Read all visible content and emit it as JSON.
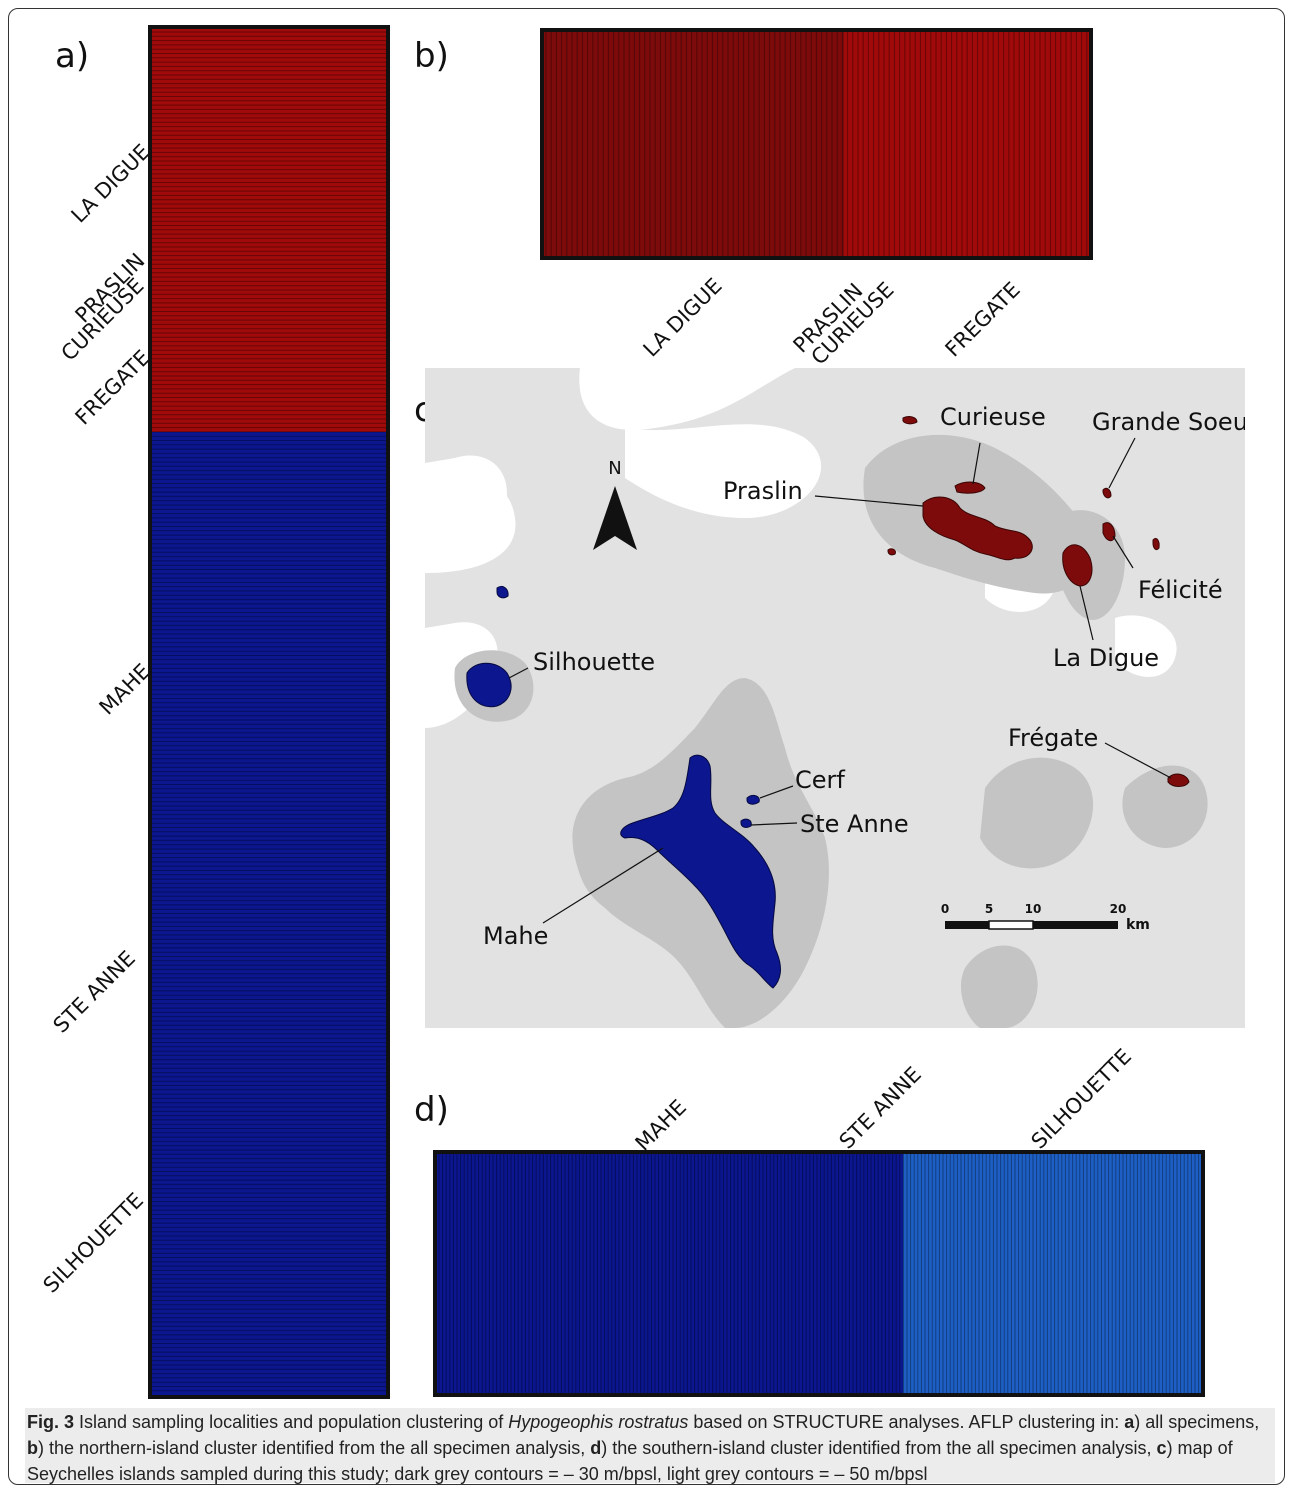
{
  "figure": {
    "panel_a_label": "a)",
    "panel_b_label": "b)",
    "panel_c_label": "c)",
    "panel_d_label": "d)",
    "colors": {
      "north_cluster": "#a00a0a",
      "north_cluster_alt": "#7e0b0b",
      "south_cluster": "#0b168f",
      "south_cluster_alt": "#1d5fc4",
      "land_dark_grey": "#c4c4c4",
      "land_light_grey": "#e2e2e2",
      "bar_border": "#111111"
    }
  },
  "panel_a": {
    "labels": [
      "LA DIGUE",
      "PRASLIN",
      "CURIEUSE",
      "FREGATE",
      "MAHE",
      "STE ANNE",
      "SILHOUETTE"
    ],
    "north_fraction": 0.295,
    "south_fraction": 0.705
  },
  "panel_b": {
    "labels": [
      "LA DIGUE",
      "PRASLIN",
      "CURIEUSE",
      "FREGATE"
    ]
  },
  "panel_d": {
    "labels": [
      "MAHE",
      "STE ANNE",
      "SILHOUETTE"
    ]
  },
  "map": {
    "north_arrow": "N",
    "islands": [
      {
        "name": "Curieuse"
      },
      {
        "name": "Grande Soeur"
      },
      {
        "name": "Praslin"
      },
      {
        "name": "Félicité"
      },
      {
        "name": "La Digue"
      },
      {
        "name": "Silhouette"
      },
      {
        "name": "Frégate"
      },
      {
        "name": "Cerf"
      },
      {
        "name": "Ste Anne"
      },
      {
        "name": "Mahe"
      }
    ],
    "scale": {
      "ticks": [
        "0",
        "5",
        "10",
        "20"
      ],
      "unit": "km"
    }
  },
  "caption": {
    "fig": "Fig. 3",
    "t1": " Island sampling localities and population clustering of ",
    "species": "Hypogeophis rostratus",
    "t2": " based on STRUCTURE analyses. AFLP clustering in: ",
    "a": "a",
    "t3": ") all specimens, ",
    "b": "b",
    "t4": ") the northern-island cluster identified from the all specimen analysis, ",
    "d": "d",
    "t5": ") the southern-island cluster identified from the all specimen analysis, ",
    "c": "c",
    "t6": ") map of Seychelles islands sampled during this study; dark grey contours = – 30 m/bpsl, light grey contours = – 50 m/bpsl"
  }
}
